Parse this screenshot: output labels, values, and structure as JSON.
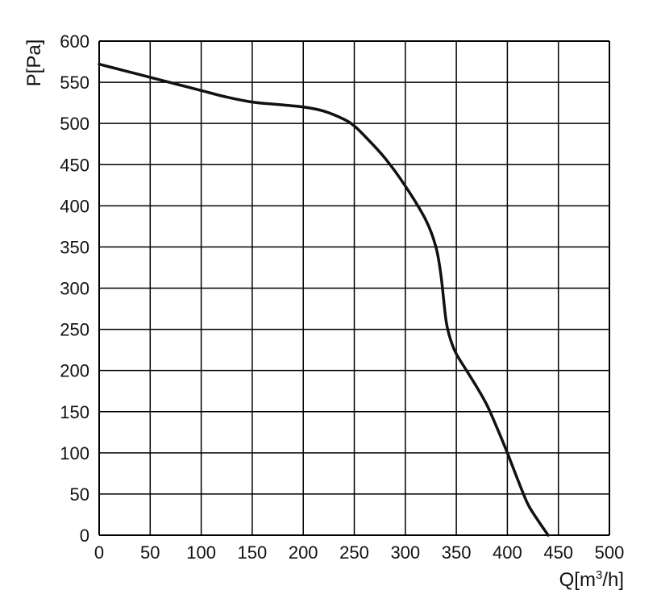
{
  "chart_data": {
    "type": "line",
    "title": "",
    "xlabel": "Q[m",
    "xlabel_sup": "3",
    "xlabel_tail": "/h]",
    "ylabel": "P[Pa]",
    "xlim": [
      0,
      500
    ],
    "ylim": [
      0,
      600
    ],
    "x_ticks": [
      0,
      50,
      100,
      150,
      200,
      250,
      300,
      350,
      400,
      450,
      500
    ],
    "y_ticks": [
      0,
      50,
      100,
      150,
      200,
      250,
      300,
      350,
      400,
      450,
      500,
      550,
      600
    ],
    "x_tick_labels": [
      "0",
      "50",
      "100",
      "150",
      "200",
      "250",
      "300",
      "350",
      "400",
      "450",
      "500"
    ],
    "y_tick_labels": [
      "0",
      "50",
      "100",
      "150",
      "200",
      "250",
      "300",
      "350",
      "400",
      "450",
      "500",
      "550",
      "600"
    ],
    "grid": true,
    "line_color": "#111111",
    "series": [
      {
        "x": [
          0,
          25,
          50,
          75,
          100,
          125,
          150,
          175,
          200,
          220,
          240,
          250,
          260,
          280,
          300,
          320,
          330,
          335,
          340,
          345,
          350,
          360,
          370,
          380,
          390,
          400,
          410,
          420,
          430,
          440
        ],
        "y": [
          572,
          564,
          556,
          548,
          540,
          532,
          526,
          523,
          520,
          515,
          505,
          497,
          485,
          458,
          424,
          383,
          350,
          315,
          260,
          235,
          220,
          200,
          180,
          158,
          130,
          100,
          68,
          38,
          18,
          0
        ]
      }
    ]
  }
}
